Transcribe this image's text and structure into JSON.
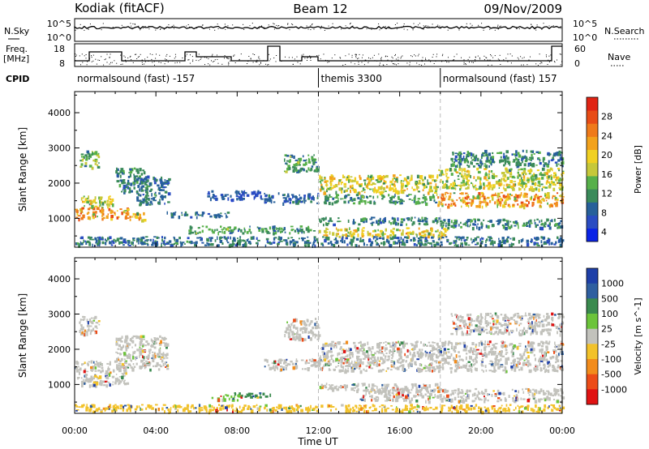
{
  "header": {
    "station": "Kodiak (fitACF)",
    "beam": "Beam 12",
    "date": "09/Nov/2009"
  },
  "sky_panel": {
    "left_label": "N.Sky",
    "right_label": "N.Search",
    "left_ticks": [
      "10^5",
      "10^0"
    ],
    "right_ticks": [
      "10^5",
      "10^0"
    ]
  },
  "freq_panel": {
    "left_label_1": "Freq.",
    "left_label_2": "[MHz]",
    "right_label": "Nave",
    "left_ticks": [
      "18",
      "8"
    ],
    "right_ticks": [
      "60",
      "0"
    ]
  },
  "cpid": {
    "label": "CPID",
    "segments": [
      {
        "text": "normalsound (fast) -157",
        "start_h": 0,
        "end_h": 12
      },
      {
        "text": "themis 3300",
        "start_h": 12,
        "end_h": 18
      },
      {
        "text": "normalsound (fast) 157",
        "start_h": 18,
        "end_h": 24
      }
    ]
  },
  "chart_data": [
    {
      "type": "heatmap",
      "title": "",
      "parameter": "Power",
      "xlabel": "",
      "ylabel": "Slant Range [km]",
      "xlim": [
        0,
        24
      ],
      "ylim": [
        180,
        4600
      ],
      "x_ticks": [
        "00:00",
        "04:00",
        "08:00",
        "12:00",
        "16:00",
        "20:00",
        "00:00"
      ],
      "y_ticks": [
        1000,
        2000,
        3000,
        4000
      ],
      "colorbar": {
        "label": "Power [dB]",
        "ticks": [
          4,
          8,
          12,
          16,
          20,
          24,
          28
        ],
        "colors": [
          "#0a23e6",
          "#2a4cc2",
          "#27609a",
          "#3a8a5a",
          "#57b04a",
          "#c6c83a",
          "#f0d022",
          "#f2a21c",
          "#ef7a1a",
          "#e84c16",
          "#e02414"
        ]
      },
      "regions": [
        {
          "t0": 0.0,
          "t1": 2.6,
          "r0": 1000,
          "r1": 1350,
          "level": 0.92
        },
        {
          "t0": 0.3,
          "t1": 2.0,
          "r0": 1350,
          "r1": 1650,
          "level": 0.65
        },
        {
          "t0": 0.2,
          "t1": 1.2,
          "r0": 2450,
          "r1": 2950,
          "level": 0.55
        },
        {
          "t0": 2.0,
          "t1": 3.6,
          "r0": 1750,
          "r1": 2450,
          "level": 0.4
        },
        {
          "t0": 3.0,
          "t1": 4.6,
          "r0": 1400,
          "r1": 2200,
          "level": 0.35
        },
        {
          "t0": 2.6,
          "t1": 3.4,
          "r0": 950,
          "r1": 1200,
          "level": 0.85
        },
        {
          "t0": 4.5,
          "t1": 7.5,
          "r0": 1050,
          "r1": 1200,
          "level": 0.3
        },
        {
          "t0": 5.5,
          "t1": 11.8,
          "r0": 600,
          "r1": 800,
          "level": 0.45
        },
        {
          "t0": 6.5,
          "t1": 9.2,
          "r0": 1550,
          "r1": 1800,
          "level": 0.25
        },
        {
          "t0": 9.3,
          "t1": 12.0,
          "r0": 1450,
          "r1": 1750,
          "level": 0.3
        },
        {
          "t0": 10.3,
          "t1": 12.0,
          "r0": 2350,
          "r1": 2850,
          "level": 0.45
        },
        {
          "t0": 12.0,
          "t1": 17.8,
          "r0": 1750,
          "r1": 2250,
          "level": 0.7
        },
        {
          "t0": 12.2,
          "t1": 17.8,
          "r0": 1450,
          "r1": 1700,
          "level": 0.45
        },
        {
          "t0": 12.0,
          "t1": 18.0,
          "r0": 850,
          "r1": 1050,
          "level": 0.4
        },
        {
          "t0": 12.0,
          "t1": 18.4,
          "r0": 500,
          "r1": 750,
          "level": 0.72
        },
        {
          "t0": 17.8,
          "t1": 24.0,
          "r0": 1350,
          "r1": 1750,
          "level": 0.88
        },
        {
          "t0": 17.8,
          "t1": 24.0,
          "r0": 1850,
          "r1": 2450,
          "level": 0.65
        },
        {
          "t0": 18.5,
          "t1": 24.0,
          "r0": 2500,
          "r1": 2950,
          "level": 0.4
        },
        {
          "t0": 18.0,
          "t1": 24.0,
          "r0": 750,
          "r1": 1000,
          "level": 0.4
        },
        {
          "t0": 0.0,
          "t1": 24.0,
          "r0": 250,
          "r1": 500,
          "level": 0.35
        }
      ]
    },
    {
      "type": "heatmap",
      "title": "",
      "parameter": "Velocity",
      "xlabel": "Time UT",
      "ylabel": "Slant Range [km]",
      "xlim": [
        0,
        24
      ],
      "ylim": [
        180,
        4600
      ],
      "x_ticks": [
        "00:00",
        "04:00",
        "08:00",
        "12:00",
        "16:00",
        "20:00",
        "00:00"
      ],
      "y_ticks": [
        1000,
        2000,
        3000,
        4000
      ],
      "colorbar": {
        "label": "Velocity [m s^-1]",
        "ticks": [
          "1000",
          "500",
          "100",
          "25",
          "-25",
          "-100",
          "-500",
          "-1000"
        ],
        "colors": [
          "#1e3fa8",
          "#2f5fa0",
          "#3a8a4e",
          "#6cc43a",
          "#c2c2bc",
          "#f2c22a",
          "#f28c1c",
          "#ec4c18",
          "#e01212"
        ]
      },
      "regions": [
        {
          "t0": 0.0,
          "t1": 2.6,
          "r0": 1000,
          "r1": 1700,
          "level": 0.5
        },
        {
          "t0": 0.9,
          "t1": 1.2,
          "r0": 1000,
          "r1": 1300,
          "level": 0.62
        },
        {
          "t0": 2.0,
          "t1": 4.6,
          "r0": 1450,
          "r1": 2400,
          "level": 0.5
        },
        {
          "t0": 0.2,
          "t1": 1.2,
          "r0": 2450,
          "r1": 2950,
          "level": 0.5
        },
        {
          "t0": 6.7,
          "t1": 8.2,
          "r0": 580,
          "r1": 780,
          "level": 0.35
        },
        {
          "t0": 8.2,
          "t1": 9.6,
          "r0": 650,
          "r1": 800,
          "level": 0.25
        },
        {
          "t0": 9.3,
          "t1": 12.0,
          "r0": 1450,
          "r1": 1750,
          "level": 0.5
        },
        {
          "t0": 10.3,
          "t1": 12.0,
          "r0": 2300,
          "r1": 2900,
          "level": 0.5
        },
        {
          "t0": 12.0,
          "t1": 24.0,
          "r0": 1400,
          "r1": 2250,
          "level": 0.5
        },
        {
          "t0": 12.0,
          "t1": 18.0,
          "r0": 850,
          "r1": 1050,
          "level": 0.5
        },
        {
          "t0": 14.0,
          "t1": 24.0,
          "r0": 550,
          "r1": 900,
          "level": 0.5
        },
        {
          "t0": 18.5,
          "t1": 24.0,
          "r0": 2450,
          "r1": 3050,
          "level": 0.5
        },
        {
          "t0": 0.0,
          "t1": 24.0,
          "r0": 250,
          "r1": 450,
          "level": 0.6
        }
      ]
    }
  ]
}
